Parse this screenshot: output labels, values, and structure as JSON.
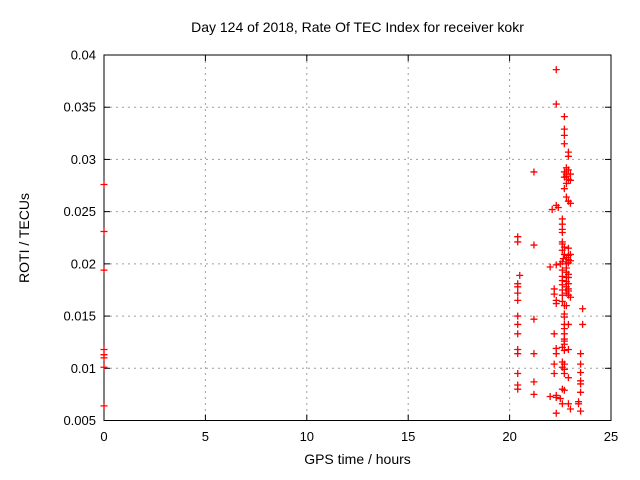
{
  "chart_data": {
    "type": "scatter",
    "title": "Day 124 of 2018, Rate Of TEC Index for receiver kokr",
    "xlabel": "GPS time / hours",
    "ylabel": "ROTI / TECUs",
    "xlim": [
      0,
      25
    ],
    "ylim": [
      0.005,
      0.04
    ],
    "xticks": [
      0,
      5,
      10,
      15,
      20,
      25
    ],
    "yticks": [
      0.005,
      0.01,
      0.015,
      0.02,
      0.025,
      0.03,
      0.035,
      0.04
    ],
    "xtick_labels": [
      "0",
      "5",
      "10",
      "15",
      "20",
      "25"
    ],
    "ytick_labels": [
      "0.005",
      "0.01",
      "0.015",
      "0.02",
      "0.025",
      "0.03",
      "0.035",
      "0.04"
    ],
    "grid": "dotted-gray-at-major-ticks",
    "legend": "none",
    "marker": "plus",
    "marker_color": "#ff0000",
    "series": [
      {
        "name": "ROTI",
        "points": [
          [
            0,
            0.0276
          ],
          [
            0,
            0.0231
          ],
          [
            0,
            0.0194
          ],
          [
            0,
            0.0118
          ],
          [
            0,
            0.0113
          ],
          [
            0,
            0.011
          ],
          [
            0,
            0.0101
          ],
          [
            0,
            0.0064
          ],
          [
            20.4,
            0.0226
          ],
          [
            20.4,
            0.0221
          ],
          [
            20.5,
            0.0189
          ],
          [
            20.4,
            0.0181
          ],
          [
            20.4,
            0.0178
          ],
          [
            20.4,
            0.0172
          ],
          [
            20.4,
            0.0165
          ],
          [
            20.4,
            0.015
          ],
          [
            20.4,
            0.0142
          ],
          [
            20.4,
            0.0133
          ],
          [
            20.4,
            0.0118
          ],
          [
            20.4,
            0.0114
          ],
          [
            20.4,
            0.0095
          ],
          [
            20.4,
            0.0084
          ],
          [
            20.4,
            0.008
          ],
          [
            21.2,
            0.0288
          ],
          [
            21.2,
            0.0218
          ],
          [
            21.2,
            0.0147
          ],
          [
            21.2,
            0.0114
          ],
          [
            21.2,
            0.0087
          ],
          [
            21.2,
            0.0075
          ],
          [
            22.1,
            0.0252
          ],
          [
            22.0,
            0.0197
          ],
          [
            22.0,
            0.0073
          ],
          [
            22.3,
            0.0386
          ],
          [
            22.3,
            0.0353
          ],
          [
            22.3,
            0.0256
          ],
          [
            22.4,
            0.0254
          ],
          [
            22.3,
            0.0199
          ],
          [
            22.2,
            0.0176
          ],
          [
            22.2,
            0.0171
          ],
          [
            22.3,
            0.0165
          ],
          [
            22.3,
            0.0162
          ],
          [
            22.2,
            0.0133
          ],
          [
            22.3,
            0.0119
          ],
          [
            22.3,
            0.0114
          ],
          [
            22.2,
            0.0104
          ],
          [
            22.2,
            0.0095
          ],
          [
            22.3,
            0.0074
          ],
          [
            22.3,
            0.0072
          ],
          [
            22.3,
            0.0057
          ],
          [
            22.7,
            0.0341
          ],
          [
            22.7,
            0.0329
          ],
          [
            22.7,
            0.0323
          ],
          [
            22.7,
            0.0315
          ],
          [
            22.8,
            0.0292
          ],
          [
            22.7,
            0.0288
          ],
          [
            22.8,
            0.0286
          ],
          [
            22.8,
            0.0284
          ],
          [
            22.7,
            0.0283
          ],
          [
            22.8,
            0.0277
          ],
          [
            22.7,
            0.0272
          ],
          [
            22.8,
            0.0264
          ],
          [
            22.6,
            0.0243
          ],
          [
            22.6,
            0.0238
          ],
          [
            22.6,
            0.0233
          ],
          [
            22.6,
            0.023
          ],
          [
            22.6,
            0.0221
          ],
          [
            22.6,
            0.0219
          ],
          [
            22.7,
            0.0216
          ],
          [
            22.6,
            0.0213
          ],
          [
            22.7,
            0.0209
          ],
          [
            22.65,
            0.0205
          ],
          [
            22.6,
            0.0202
          ],
          [
            22.5,
            0.02
          ],
          [
            22.8,
            0.0206
          ],
          [
            22.8,
            0.02
          ],
          [
            22.8,
            0.0196
          ],
          [
            22.6,
            0.0194
          ],
          [
            22.8,
            0.0192
          ],
          [
            22.6,
            0.0188
          ],
          [
            22.8,
            0.0187
          ],
          [
            22.6,
            0.0184
          ],
          [
            22.8,
            0.0183
          ],
          [
            22.6,
            0.018
          ],
          [
            22.8,
            0.0178
          ],
          [
            22.6,
            0.0175
          ],
          [
            22.8,
            0.0172
          ],
          [
            22.6,
            0.017
          ],
          [
            22.6,
            0.0164
          ],
          [
            22.7,
            0.016
          ],
          [
            22.8,
            0.016
          ],
          [
            22.7,
            0.0152
          ],
          [
            22.7,
            0.0149
          ],
          [
            22.7,
            0.0142
          ],
          [
            22.7,
            0.0138
          ],
          [
            22.7,
            0.0133
          ],
          [
            22.7,
            0.0128
          ],
          [
            22.7,
            0.0126
          ],
          [
            22.7,
            0.0123
          ],
          [
            22.6,
            0.012
          ],
          [
            22.7,
            0.0117
          ],
          [
            22.6,
            0.0106
          ],
          [
            22.7,
            0.0104
          ],
          [
            22.6,
            0.0101
          ],
          [
            22.7,
            0.0099
          ],
          [
            22.7,
            0.0095
          ],
          [
            22.6,
            0.008
          ],
          [
            22.7,
            0.0079
          ],
          [
            22.5,
            0.0071
          ],
          [
            22.6,
            0.0066
          ],
          [
            22.9,
            0.0307
          ],
          [
            22.9,
            0.0303
          ],
          [
            22.9,
            0.029
          ],
          [
            23.0,
            0.0286
          ],
          [
            22.9,
            0.0281
          ],
          [
            23.0,
            0.028
          ],
          [
            22.9,
            0.026
          ],
          [
            23.0,
            0.0258
          ],
          [
            22.9,
            0.0215
          ],
          [
            23.0,
            0.0209
          ],
          [
            22.9,
            0.0208
          ],
          [
            22.9,
            0.0204
          ],
          [
            23.0,
            0.0203
          ],
          [
            22.9,
            0.0201
          ],
          [
            22.9,
            0.019
          ],
          [
            22.9,
            0.0187
          ],
          [
            22.9,
            0.0181
          ],
          [
            22.9,
            0.0176
          ],
          [
            22.9,
            0.0174
          ],
          [
            22.9,
            0.017
          ],
          [
            23.0,
            0.0168
          ],
          [
            22.9,
            0.0142
          ],
          [
            22.9,
            0.0118
          ],
          [
            22.9,
            0.0091
          ],
          [
            22.9,
            0.0066
          ],
          [
            23.0,
            0.0061
          ],
          [
            23.6,
            0.0157
          ],
          [
            23.6,
            0.0142
          ],
          [
            23.5,
            0.0114
          ],
          [
            23.5,
            0.0104
          ],
          [
            23.5,
            0.0096
          ],
          [
            23.5,
            0.0088
          ],
          [
            23.5,
            0.0085
          ],
          [
            23.5,
            0.0077
          ],
          [
            23.4,
            0.0068
          ],
          [
            23.4,
            0.0066
          ],
          [
            23.5,
            0.0059
          ]
        ]
      }
    ],
    "plot_style": {
      "border_color": "#000000",
      "grid_color": "#9e9e9e",
      "background": "#ffffff"
    }
  }
}
